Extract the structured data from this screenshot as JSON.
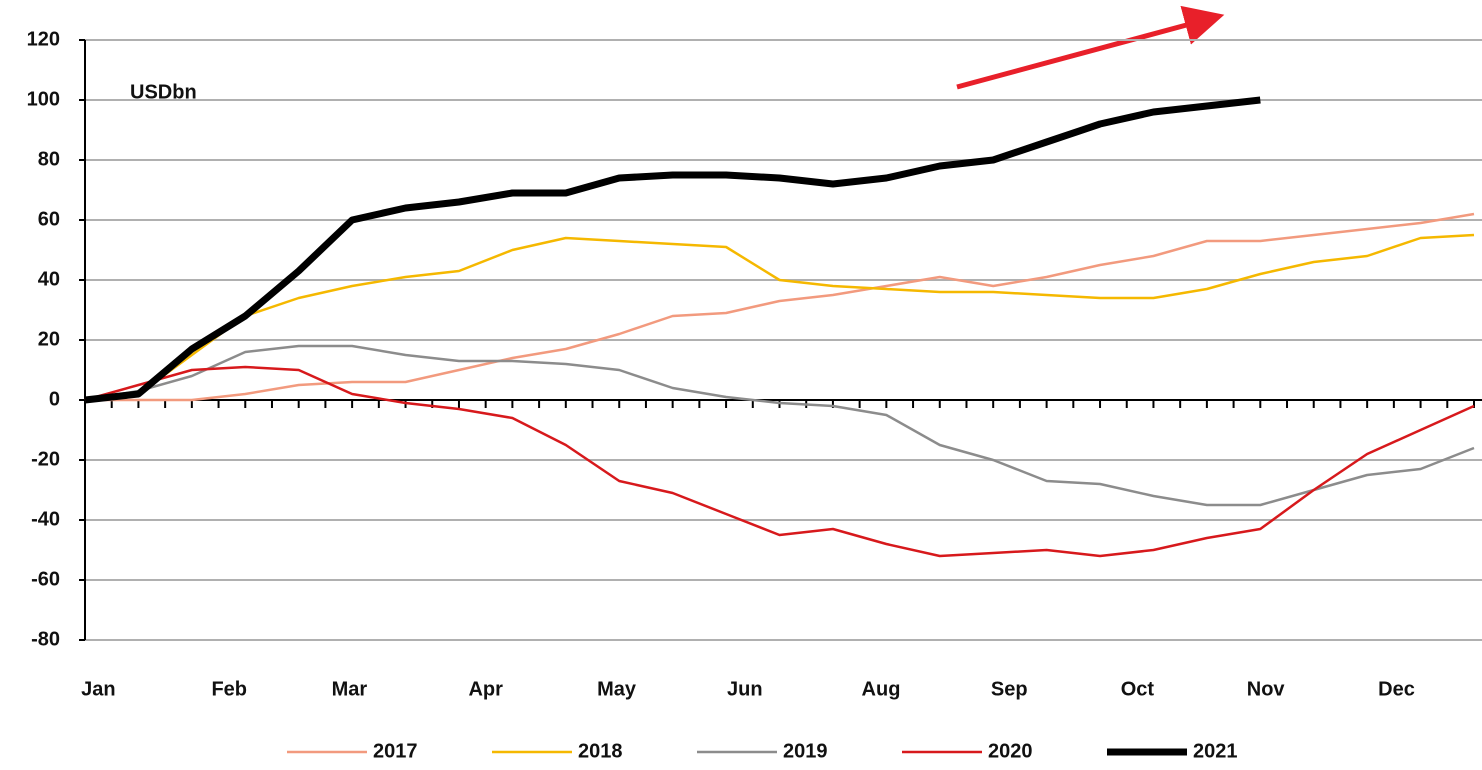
{
  "chart_data": {
    "type": "line",
    "annotation": "USDbn",
    "x": [
      0,
      2,
      4,
      6,
      8,
      10,
      12,
      14,
      16,
      18,
      20,
      22,
      24,
      26,
      28,
      30,
      32,
      34,
      36,
      38,
      40,
      42,
      44,
      46,
      48,
      50,
      52
    ],
    "xlim": [
      0,
      52
    ],
    "xticks": [
      {
        "value": 0.5,
        "label": "Jan"
      },
      {
        "value": 5.4,
        "label": "Feb"
      },
      {
        "value": 9.9,
        "label": "Mar"
      },
      {
        "value": 15,
        "label": "Apr"
      },
      {
        "value": 19.9,
        "label": "May"
      },
      {
        "value": 24.7,
        "label": "Jun"
      },
      {
        "value": 29.8,
        "label": "Aug"
      },
      {
        "value": 34.6,
        "label": "Sep"
      },
      {
        "value": 39.4,
        "label": "Oct"
      },
      {
        "value": 44.2,
        "label": "Nov"
      },
      {
        "value": 49.1,
        "label": "Dec"
      }
    ],
    "ylim": [
      -80,
      120
    ],
    "yticks": [
      -80,
      -60,
      -40,
      -20,
      0,
      20,
      40,
      60,
      80,
      100,
      120
    ],
    "grid": true,
    "series": [
      {
        "name": "2017",
        "color": "#f29a7e",
        "values": [
          0,
          0,
          0,
          2,
          5,
          6,
          6,
          10,
          14,
          17,
          22,
          28,
          29,
          33,
          35,
          38,
          41,
          38,
          41,
          45,
          48,
          53,
          53,
          55,
          57,
          59,
          62
        ]
      },
      {
        "name": "2018",
        "color": "#f5b800",
        "values": [
          0,
          2,
          15,
          28,
          34,
          38,
          41,
          43,
          50,
          54,
          53,
          52,
          51,
          40,
          38,
          37,
          36,
          36,
          35,
          34,
          34,
          37,
          42,
          46,
          48,
          54,
          55
        ]
      },
      {
        "name": "2019",
        "color": "#8c8c8c",
        "values": [
          0,
          3,
          8,
          16,
          18,
          18,
          15,
          13,
          13,
          12,
          10,
          4,
          1,
          -1,
          -2,
          -5,
          -15,
          -20,
          -27,
          -28,
          -32,
          -35,
          -35,
          -30,
          -25,
          -23,
          -16
        ]
      },
      {
        "name": "2020",
        "color": "#d7191c",
        "values": [
          0,
          5,
          10,
          11,
          10,
          2,
          -1,
          -3,
          -6,
          -15,
          -27,
          -31,
          -38,
          -45,
          -43,
          -48,
          -52,
          -51,
          -50,
          -52,
          -50,
          -46,
          -43,
          -30,
          -18,
          -10,
          -2
        ]
      },
      {
        "name": "2021",
        "color": "#000000",
        "values": [
          0,
          2,
          17,
          28,
          43,
          60,
          64,
          66,
          69,
          69,
          74,
          75,
          75,
          74,
          72,
          74,
          78,
          80,
          86,
          92,
          96,
          98,
          100,
          null,
          null,
          null,
          null
        ]
      }
    ]
  }
}
